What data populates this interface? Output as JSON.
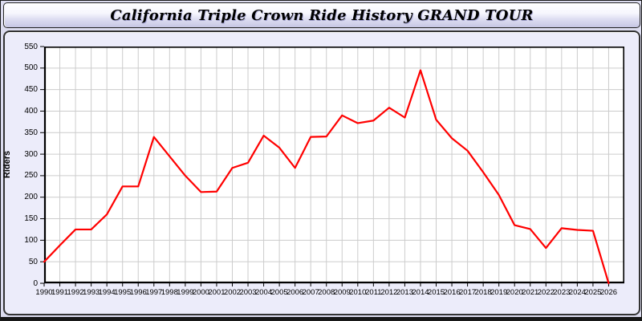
{
  "window": {
    "title": "California Triple Crown Ride History GRAND TOUR"
  },
  "colors": {
    "accent_line": "#ff0000",
    "page_bg": "#dcdcef",
    "panel_bg": "#ececfa",
    "plot_bg": "#ffffff",
    "grid": "#cccccc",
    "axis": "#000000",
    "header_gradient_top": "#ffffff",
    "header_gradient_bottom": "#c7c7e4",
    "bottom_strip": "#161616"
  },
  "chart_data": {
    "type": "line",
    "title": "California Triple Crown Ride History GRAND TOUR",
    "xlabel": "",
    "ylabel": "Riders",
    "xlim": [
      1990,
      2027
    ],
    "ylim": [
      0,
      550
    ],
    "grid": true,
    "legend": "none",
    "x": [
      1990,
      1991,
      1992,
      1993,
      1994,
      1995,
      1996,
      1997,
      1998,
      1999,
      2000,
      2001,
      2002,
      2003,
      2004,
      2005,
      2006,
      2007,
      2008,
      2009,
      2010,
      2011,
      2012,
      2013,
      2014,
      2015,
      2016,
      2017,
      2018,
      2019,
      2020,
      2021,
      2022,
      2023,
      2024,
      2025,
      2026
    ],
    "y_ticks": [
      0,
      50,
      100,
      150,
      200,
      250,
      300,
      350,
      400,
      450,
      500,
      550
    ],
    "series": [
      {
        "name": "Riders",
        "color": "#ff0000",
        "values": [
          50,
          88,
          125,
          125,
          160,
          225,
          225,
          340,
          295,
          250,
          212,
          213,
          268,
          280,
          343,
          315,
          268,
          340,
          341,
          390,
          372,
          378,
          408,
          385,
          495,
          380,
          337,
          308,
          258,
          205,
          135,
          126,
          82,
          128,
          124,
          122,
          0
        ]
      }
    ]
  }
}
